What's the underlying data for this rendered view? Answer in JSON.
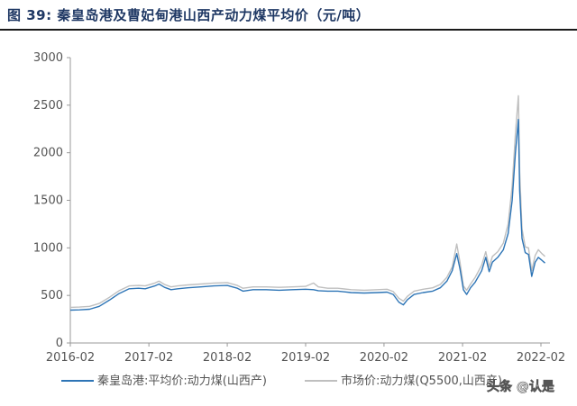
{
  "figure": {
    "title": "图  39:  秦皇岛港及曹妃甸港山西产动力煤平均价（元/吨）"
  },
  "watermark": "头条 @认是",
  "chart_data": {
    "type": "line",
    "title": "图 39: 秦皇岛港及曹妃甸港山西产动力煤平均价（元/吨）",
    "xlabel": "",
    "ylabel": "",
    "ylim": [
      0,
      3000
    ],
    "yticks": [
      0,
      500,
      1000,
      1500,
      2000,
      2500,
      3000
    ],
    "xticks": [
      "2016-02",
      "2017-02",
      "2018-02",
      "2019-02",
      "2020-02",
      "2021-02",
      "2022-02"
    ],
    "xlim": [
      "2016-02",
      "2022-02"
    ],
    "grid": false,
    "legend_position": "bottom",
    "series": [
      {
        "name": "秦皇岛港:平均价:动力煤(山西产)",
        "color": "#2e75b6",
        "points": [
          [
            "2016-02-01",
            345
          ],
          [
            "2016-03-15",
            348
          ],
          [
            "2016-05-01",
            355
          ],
          [
            "2016-06-15",
            385
          ],
          [
            "2016-08-01",
            450
          ],
          [
            "2016-09-15",
            520
          ],
          [
            "2016-11-01",
            570
          ],
          [
            "2016-12-15",
            575
          ],
          [
            "2017-01-15",
            570
          ],
          [
            "2017-03-01",
            600
          ],
          [
            "2017-03-20",
            620
          ],
          [
            "2017-04-15",
            585
          ],
          [
            "2017-05-15",
            560
          ],
          [
            "2017-06-15",
            570
          ],
          [
            "2017-08-01",
            580
          ],
          [
            "2017-10-01",
            590
          ],
          [
            "2017-12-01",
            600
          ],
          [
            "2018-02-01",
            605
          ],
          [
            "2018-03-20",
            575
          ],
          [
            "2018-04-15",
            545
          ],
          [
            "2018-06-01",
            560
          ],
          [
            "2018-08-01",
            560
          ],
          [
            "2018-10-01",
            555
          ],
          [
            "2018-12-01",
            560
          ],
          [
            "2019-02-01",
            565
          ],
          [
            "2019-03-10",
            560
          ],
          [
            "2019-04-01",
            550
          ],
          [
            "2019-05-15",
            545
          ],
          [
            "2019-07-01",
            545
          ],
          [
            "2019-09-01",
            530
          ],
          [
            "2019-11-01",
            525
          ],
          [
            "2020-01-01",
            530
          ],
          [
            "2020-02-15",
            535
          ],
          [
            "2020-03-15",
            510
          ],
          [
            "2020-04-10",
            430
          ],
          [
            "2020-05-01",
            400
          ],
          [
            "2020-05-20",
            455
          ],
          [
            "2020-06-20",
            510
          ],
          [
            "2020-08-01",
            530
          ],
          [
            "2020-09-15",
            545
          ],
          [
            "2020-10-20",
            580
          ],
          [
            "2020-11-20",
            650
          ],
          [
            "2020-12-15",
            760
          ],
          [
            "2021-01-05",
            940
          ],
          [
            "2021-01-20",
            780
          ],
          [
            "2021-02-05",
            560
          ],
          [
            "2021-02-20",
            510
          ],
          [
            "2021-03-10",
            580
          ],
          [
            "2021-04-01",
            640
          ],
          [
            "2021-05-01",
            760
          ],
          [
            "2021-05-20",
            900
          ],
          [
            "2021-06-05",
            750
          ],
          [
            "2021-06-20",
            850
          ],
          [
            "2021-07-15",
            900
          ],
          [
            "2021-08-10",
            980
          ],
          [
            "2021-09-01",
            1150
          ],
          [
            "2021-09-20",
            1500
          ],
          [
            "2021-10-05",
            2000
          ],
          [
            "2021-10-19",
            2350
          ],
          [
            "2021-10-25",
            1600
          ],
          [
            "2021-11-05",
            1100
          ],
          [
            "2021-11-20",
            950
          ],
          [
            "2021-12-05",
            930
          ],
          [
            "2021-12-20",
            700
          ],
          [
            "2022-01-05",
            850
          ],
          [
            "2022-01-20",
            900
          ],
          [
            "2022-02-05",
            870
          ],
          [
            "2022-02-20",
            840
          ]
        ]
      },
      {
        "name": "市场价:动力煤(Q5500,山西产)",
        "color": "#bfbfbf",
        "points": [
          [
            "2016-02-01",
            375
          ],
          [
            "2016-03-15",
            378
          ],
          [
            "2016-05-01",
            385
          ],
          [
            "2016-06-15",
            415
          ],
          [
            "2016-08-01",
            480
          ],
          [
            "2016-09-15",
            550
          ],
          [
            "2016-11-01",
            600
          ],
          [
            "2016-12-15",
            605
          ],
          [
            "2017-01-15",
            600
          ],
          [
            "2017-03-01",
            630
          ],
          [
            "2017-03-20",
            650
          ],
          [
            "2017-04-15",
            615
          ],
          [
            "2017-05-15",
            590
          ],
          [
            "2017-06-15",
            600
          ],
          [
            "2017-08-01",
            610
          ],
          [
            "2017-10-01",
            620
          ],
          [
            "2017-12-01",
            630
          ],
          [
            "2018-02-01",
            635
          ],
          [
            "2018-03-20",
            605
          ],
          [
            "2018-04-15",
            575
          ],
          [
            "2018-06-01",
            590
          ],
          [
            "2018-08-01",
            590
          ],
          [
            "2018-10-01",
            585
          ],
          [
            "2018-12-01",
            590
          ],
          [
            "2019-02-01",
            595
          ],
          [
            "2019-03-10",
            630
          ],
          [
            "2019-04-01",
            590
          ],
          [
            "2019-05-15",
            575
          ],
          [
            "2019-07-01",
            575
          ],
          [
            "2019-09-01",
            560
          ],
          [
            "2019-11-01",
            555
          ],
          [
            "2020-01-01",
            560
          ],
          [
            "2020-02-15",
            565
          ],
          [
            "2020-03-15",
            540
          ],
          [
            "2020-04-10",
            470
          ],
          [
            "2020-05-01",
            440
          ],
          [
            "2020-05-20",
            490
          ],
          [
            "2020-06-20",
            545
          ],
          [
            "2020-08-01",
            565
          ],
          [
            "2020-09-15",
            580
          ],
          [
            "2020-10-20",
            615
          ],
          [
            "2020-11-20",
            690
          ],
          [
            "2020-12-15",
            800
          ],
          [
            "2021-01-05",
            1040
          ],
          [
            "2021-01-20",
            850
          ],
          [
            "2021-02-05",
            600
          ],
          [
            "2021-02-20",
            555
          ],
          [
            "2021-03-10",
            620
          ],
          [
            "2021-04-01",
            690
          ],
          [
            "2021-05-01",
            820
          ],
          [
            "2021-05-20",
            960
          ],
          [
            "2021-06-05",
            800
          ],
          [
            "2021-06-20",
            910
          ],
          [
            "2021-07-15",
            960
          ],
          [
            "2021-08-10",
            1050
          ],
          [
            "2021-09-01",
            1250
          ],
          [
            "2021-09-20",
            1650
          ],
          [
            "2021-10-05",
            2200
          ],
          [
            "2021-10-19",
            2600
          ],
          [
            "2021-10-25",
            1800
          ],
          [
            "2021-11-05",
            1200
          ],
          [
            "2021-11-20",
            1010
          ],
          [
            "2021-12-05",
            1000
          ],
          [
            "2021-12-20",
            760
          ],
          [
            "2022-01-05",
            920
          ],
          [
            "2022-01-20",
            980
          ],
          [
            "2022-02-05",
            940
          ],
          [
            "2022-02-20",
            910
          ]
        ]
      }
    ]
  }
}
